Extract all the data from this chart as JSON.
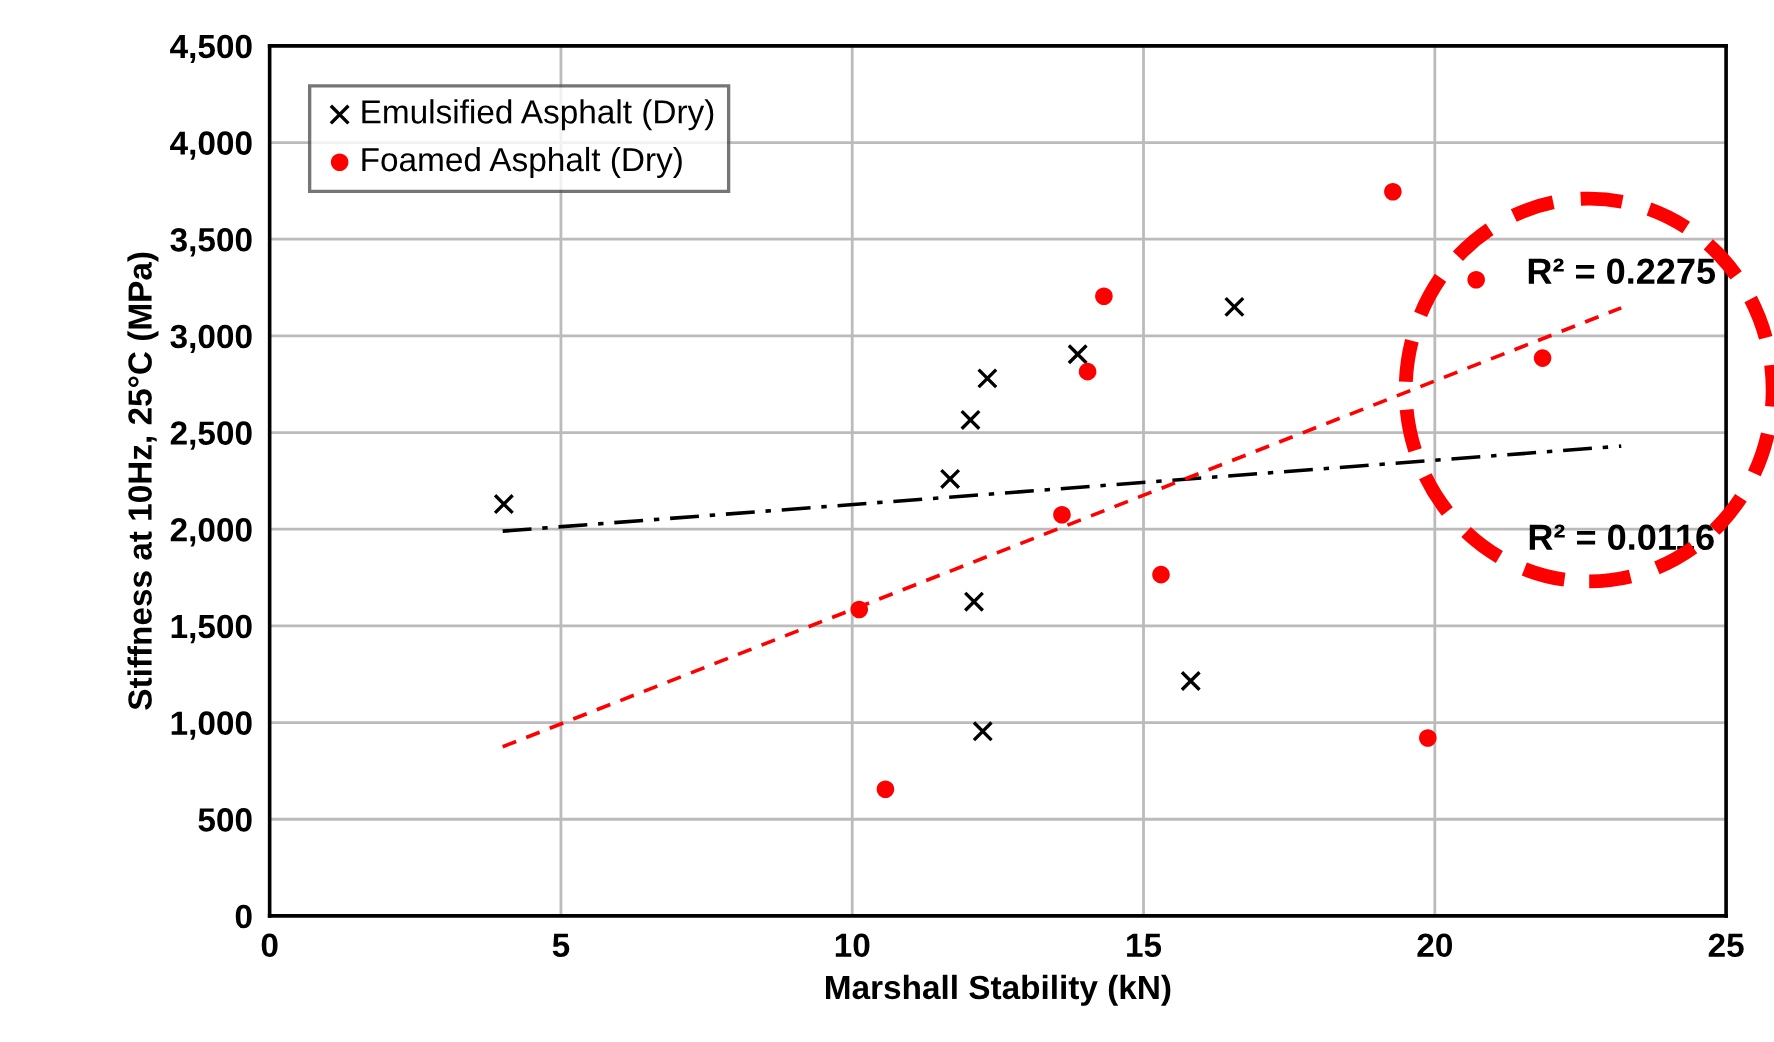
{
  "chart_data": {
    "type": "scatter",
    "xlabel": "Marshall Stability (kN)",
    "ylabel": "Stiffness at 10Hz, 25°C (MPa)",
    "series": [
      {
        "name": "Emulsified Asphalt (Dry)",
        "color": "#000000",
        "marker": "cross",
        "x": [
          4.02,
          11.68,
          12.03,
          12.32,
          13.87,
          12.09,
          12.24,
          16.56,
          15.81
        ],
        "values": [
          2130,
          2260,
          2565,
          2780,
          2905,
          1625,
          955,
          3150,
          1215
        ]
      },
      {
        "name": "Foamed Asphalt (Dry)",
        "color": "#ff0000",
        "marker": "circle",
        "x": [
          10.12,
          10.57,
          13.6,
          14.04,
          14.32,
          15.3,
          19.28,
          19.88,
          20.71,
          21.85
        ],
        "values": [
          1585,
          655,
          2075,
          2815,
          3205,
          1765,
          3745,
          920,
          3290,
          2885
        ]
      },
      {
        "type": "line",
        "color": "#000000",
        "line_style": "dashdot",
        "marker": "none",
        "x": [
          4.0,
          23.2
        ],
        "values": [
          1990,
          2430
        ]
      },
      {
        "type": "line",
        "color": "#ff0000",
        "line_style": "dashed",
        "marker": "none",
        "x": [
          4.0,
          23.2
        ],
        "values": [
          875,
          3145
        ]
      }
    ],
    "annotations": [
      {
        "text": "R² = 0.2275",
        "x": 23.2,
        "y": 3145
      },
      {
        "text": "R² = 0.0116",
        "x": 23.2,
        "y": 2430
      }
    ],
    "xlim": [
      0,
      25
    ],
    "xticks": [
      0,
      5,
      10,
      15,
      20,
      25
    ],
    "ylim": [
      0,
      4500
    ],
    "yticks": [
      0,
      500,
      {
        "value": 1000,
        "label": "1,000"
      },
      {
        "value": 1500,
        "label": "1,500"
      },
      {
        "value": 2000,
        "label": "2,000"
      },
      {
        "value": 2500,
        "label": "2,500"
      },
      {
        "value": 3000,
        "label": "3,000"
      },
      {
        "value": 3500,
        "label": "3,500"
      },
      {
        "value": 4000,
        "label": "4,000"
      },
      {
        "value": 4500,
        "label": "4,500"
      }
    ],
    "grid": true,
    "legend": "top left"
  }
}
